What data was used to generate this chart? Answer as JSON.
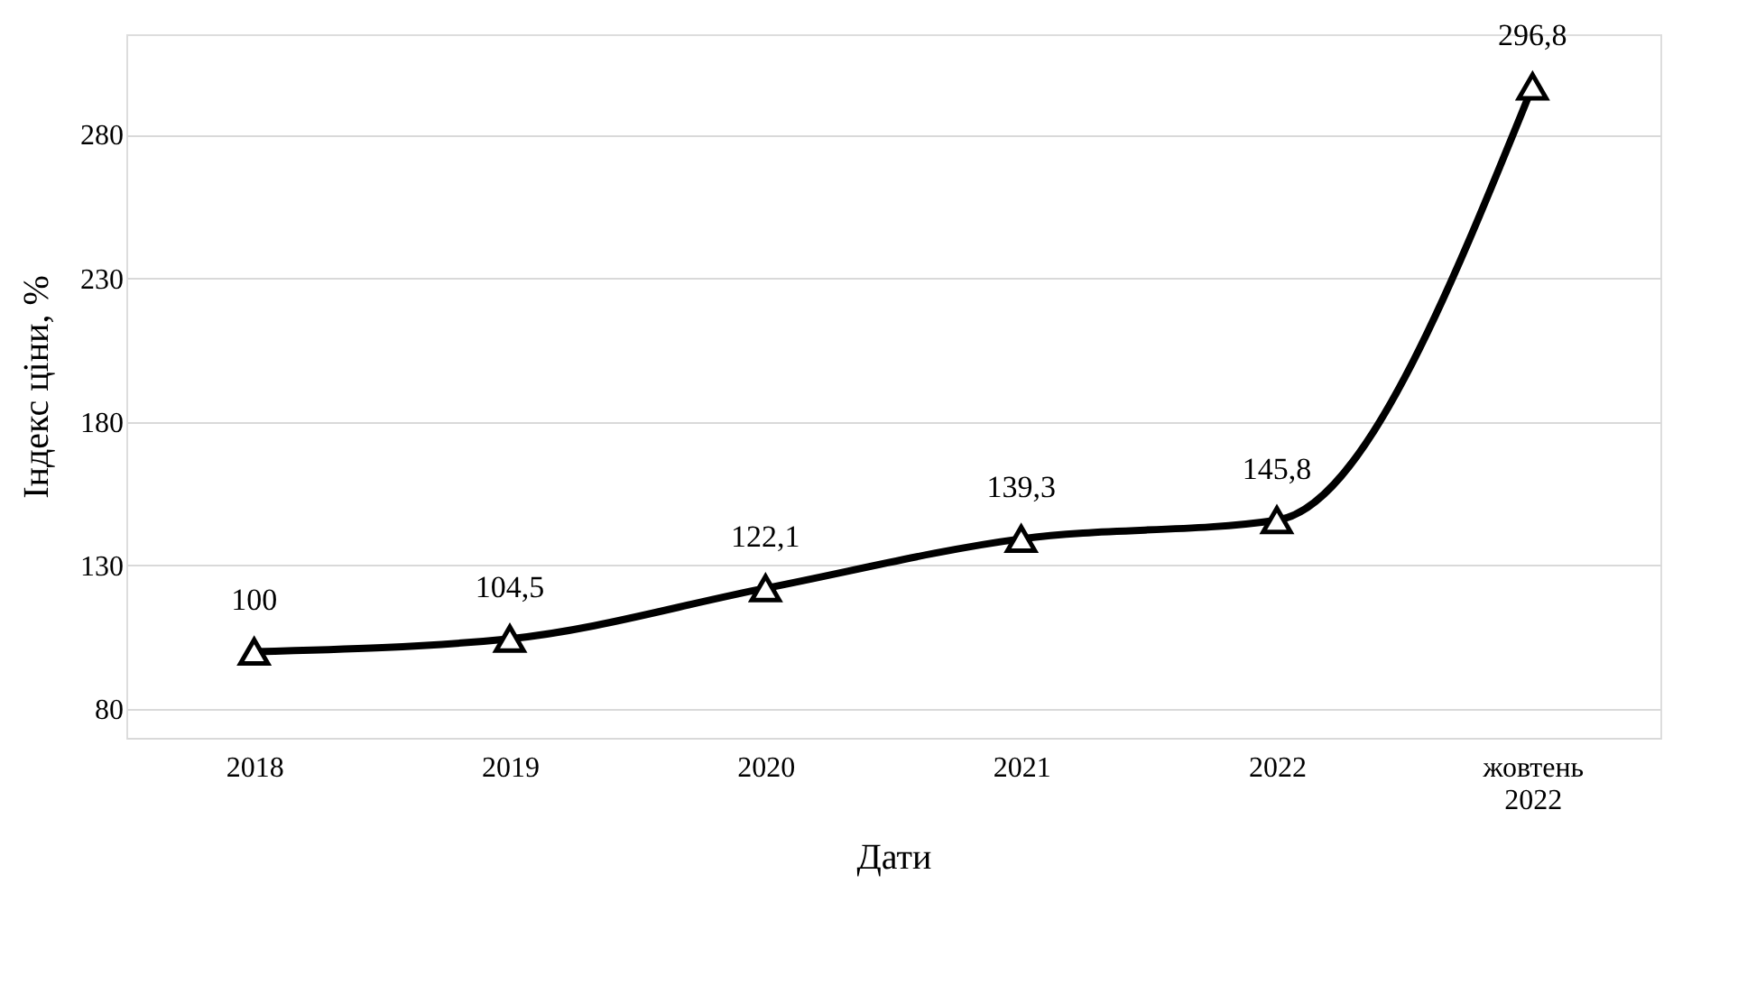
{
  "chart_data": {
    "type": "line",
    "xlabel": "Дати",
    "ylabel": "Індекс ціни, %",
    "categories": [
      "2018",
      "2019",
      "2020",
      "2021",
      "2022",
      "жовтень 2022"
    ],
    "series": [
      {
        "color": "#000000",
        "values": [
          100,
          104.5,
          122.1,
          139.3,
          145.8,
          296.8
        ],
        "value_labels": [
          "100",
          "104,5",
          "122,1",
          "139,3",
          "145,8",
          "296,8"
        ]
      }
    ],
    "ylim": [
      70,
      315
    ],
    "yticks": [
      80,
      130,
      180,
      230,
      280
    ],
    "grid": "y",
    "marker": "triangle",
    "line_style": "solid",
    "legend": false
  }
}
